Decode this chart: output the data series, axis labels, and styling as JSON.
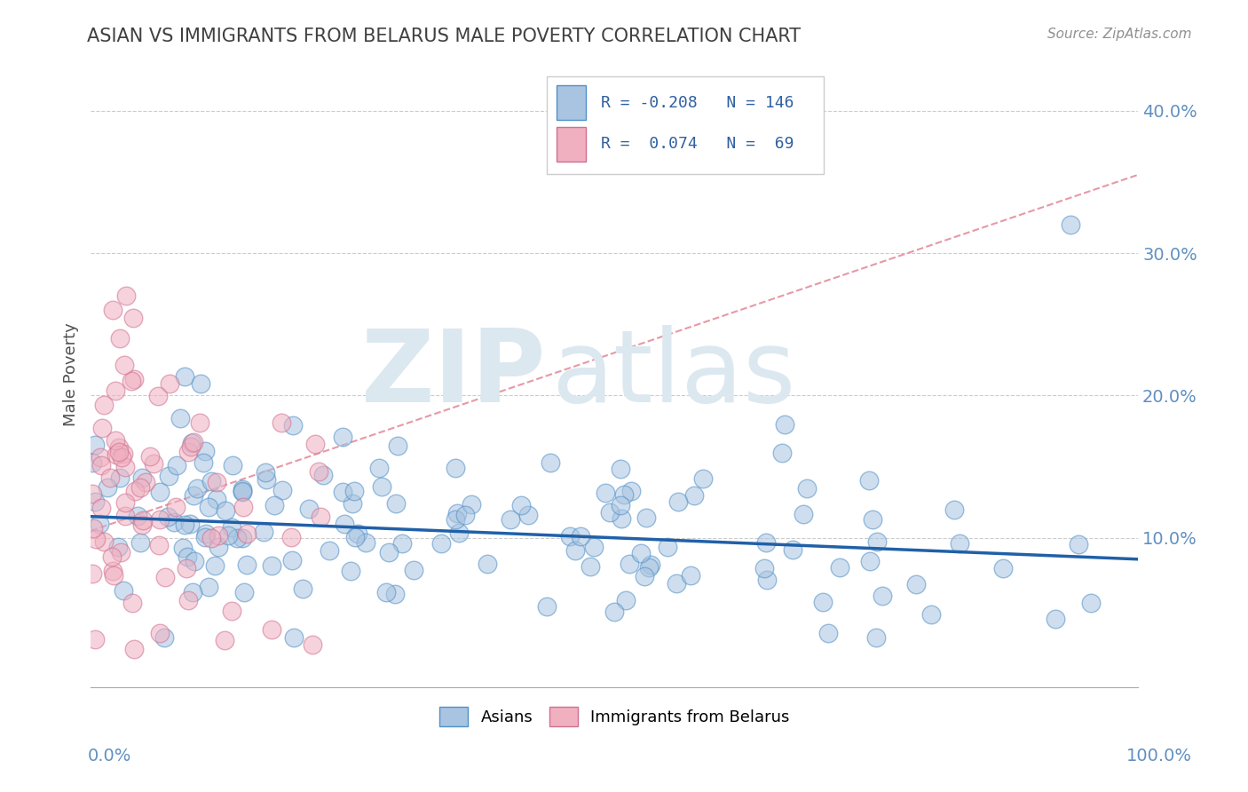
{
  "title": "ASIAN VS IMMIGRANTS FROM BELARUS MALE POVERTY CORRELATION CHART",
  "source_text": "Source: ZipAtlas.com",
  "ylabel": "Male Poverty",
  "xlim": [
    0.0,
    1.0
  ],
  "ylim": [
    -0.005,
    0.435
  ],
  "color_asian": "#a8c4e0",
  "color_asian_edge": "#5090c8",
  "color_belarus": "#f0b0c0",
  "color_belarus_edge": "#d07090",
  "color_asian_line": "#2060a8",
  "color_belarus_line": "#e08090",
  "background_color": "#ffffff",
  "grid_color": "#cccccc",
  "title_color": "#404040",
  "axis_label_color": "#6090c0",
  "watermark_zip": "ZIP",
  "watermark_atlas": "atlas",
  "watermark_color": "#dce8f0"
}
